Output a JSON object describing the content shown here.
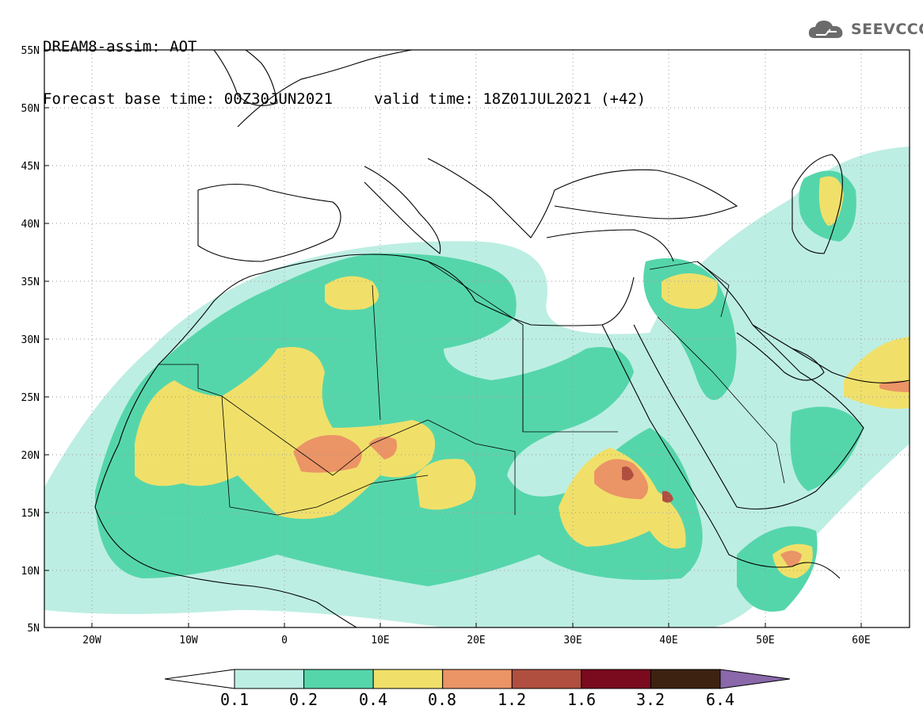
{
  "header": {
    "line1": "DREAM8-assim: AOT",
    "base_time": "Forecast base time: 00Z30JUN2021",
    "valid_time": "valid time: 18Z01JUL2021 (+42)"
  },
  "logo": {
    "text": "SEEVCCC",
    "icon": "cloud-icon"
  },
  "map": {
    "lat_labels": [
      "55N",
      "50N",
      "45N",
      "40N",
      "35N",
      "30N",
      "25N",
      "20N",
      "15N",
      "10N",
      "5N"
    ],
    "lon_labels": [
      "20W",
      "10W",
      "0",
      "10E",
      "20E",
      "30E",
      "40E",
      "50E",
      "60E"
    ],
    "gridlines": true,
    "lat_range": [
      5,
      55
    ],
    "lon_range": [
      -25,
      65
    ]
  },
  "colorbar": {
    "labels": [
      "0.1",
      "0.2",
      "0.4",
      "0.8",
      "1.2",
      "1.6",
      "3.2",
      "6.4"
    ],
    "colors": [
      "#bdeee3",
      "#55d6aa",
      "#f0e06a",
      "#eb9466",
      "#b04f3f",
      "#7a0a1e",
      "#3d2212",
      "#8a68aa"
    ],
    "under_color": "#ffffff"
  }
}
